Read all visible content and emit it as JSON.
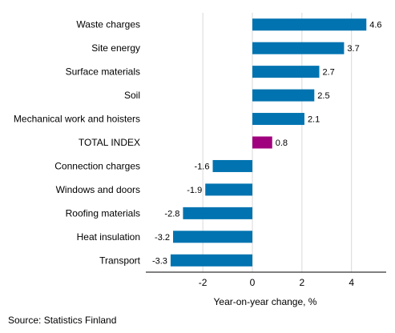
{
  "chart_data": {
    "type": "bar",
    "orientation": "horizontal",
    "categories": [
      "Waste charges",
      "Site energy",
      "Surface materials",
      "Soil",
      "Mechanical work and hoisters",
      "TOTAL INDEX",
      "Connection charges",
      "Windows and doors",
      "Roofing materials",
      "Heat insulation",
      "Transport"
    ],
    "values": [
      4.6,
      3.7,
      2.7,
      2.5,
      2.1,
      0.8,
      -1.6,
      -1.9,
      -2.8,
      -3.2,
      -3.3
    ],
    "value_labels": [
      "4.6",
      "3.7",
      "2.7",
      "2.5",
      "2.1",
      "0.8",
      "-1.6",
      "-1.9",
      "-2.8",
      "-3.2",
      "-3.3"
    ],
    "highlight_category": "TOTAL INDEX",
    "bar_color": "#0073b0",
    "highlight_color": "#a0007e",
    "xlabel": "Year-on-year change, %",
    "xlim": [
      -4.3,
      5.4
    ],
    "xticks": [
      -2,
      0,
      2,
      4
    ],
    "xtick_labels": [
      "-2",
      "0",
      "2",
      "4"
    ],
    "grid": "vertical",
    "legend": "none"
  },
  "source": "Source: Statistics Finland"
}
